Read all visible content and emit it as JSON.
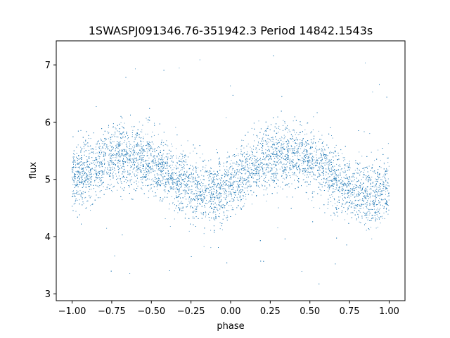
{
  "chart_data": {
    "type": "scatter",
    "title": "1SWASPJ091346.76-351942.3 Period 14842.1543s",
    "xlabel": "phase",
    "ylabel": "flux",
    "xlim": [
      -1.1,
      1.1
    ],
    "ylim": [
      2.88,
      7.42
    ],
    "x_ticks": [
      -1.0,
      -0.75,
      -0.5,
      -0.25,
      0.0,
      0.25,
      0.5,
      0.75,
      1.0
    ],
    "x_tick_labels": [
      "−1.00",
      "−0.75",
      "−0.50",
      "−0.25",
      "0.00",
      "0.25",
      "0.50",
      "0.75",
      "1.00"
    ],
    "y_ticks": [
      3,
      4,
      5,
      6,
      7
    ],
    "y_tick_labels": [
      "3",
      "4",
      "5",
      "6",
      "7"
    ],
    "grid": false,
    "series": [
      {
        "color": "#1f77b4",
        "marker": "point",
        "phase_range": [
          -1.0,
          1.0
        ],
        "trend_phase": [
          -1.0,
          -0.9,
          -0.8,
          -0.7,
          -0.6,
          -0.5,
          -0.4,
          -0.3,
          -0.2,
          -0.1,
          0.0,
          0.1,
          0.2,
          0.3,
          0.4,
          0.5,
          0.6,
          0.7,
          0.8,
          0.9,
          1.0
        ],
        "trend_flux": [
          4.95,
          5.15,
          5.32,
          5.42,
          5.4,
          5.3,
          5.12,
          4.95,
          4.78,
          4.75,
          4.85,
          5.12,
          5.32,
          5.45,
          5.42,
          5.3,
          5.1,
          4.92,
          4.78,
          4.75,
          4.85
        ],
        "scatter_sd": 0.28,
        "outlier_range": [
          3.1,
          7.2
        ]
      }
    ]
  }
}
